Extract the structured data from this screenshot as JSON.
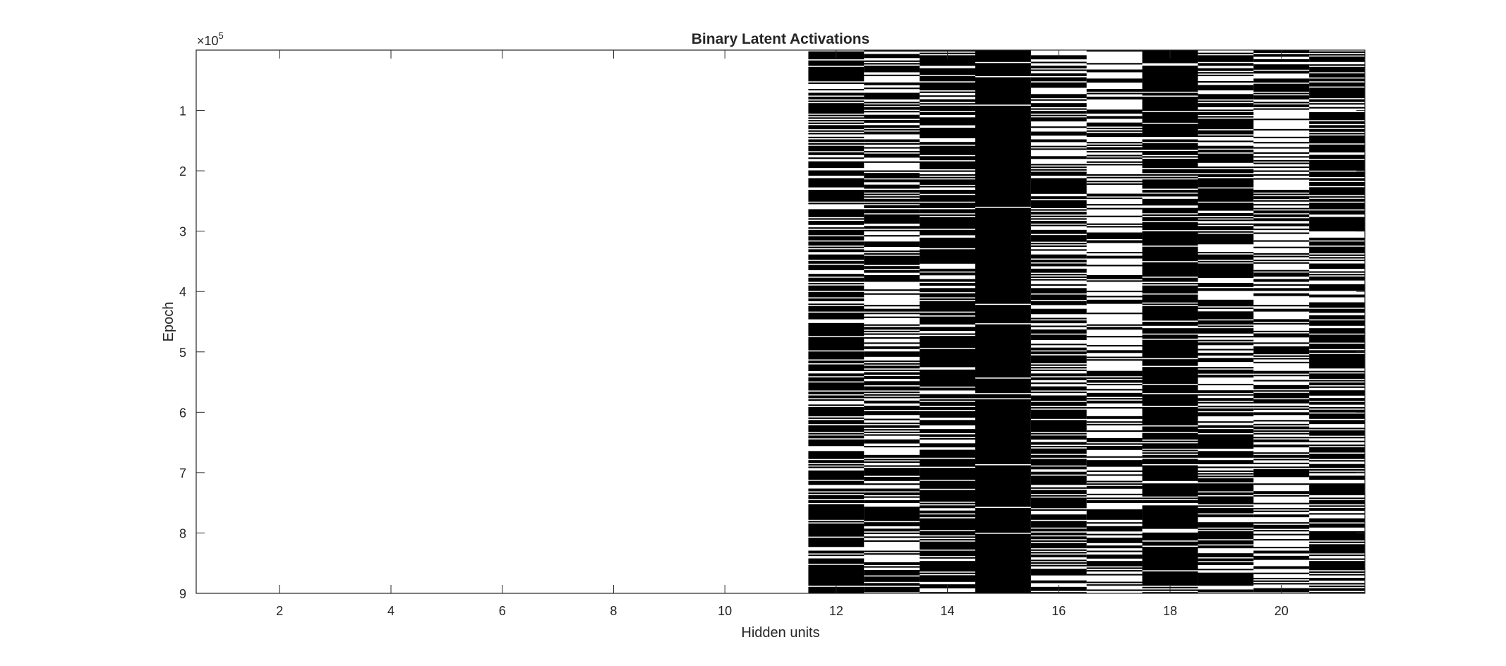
{
  "chart_data": {
    "type": "heatmap",
    "title": "Binary Latent Activations",
    "xlabel": "Hidden units",
    "ylabel": "Epoch",
    "y_exponent_label": "×10",
    "y_exponent_power": "5",
    "xlim": [
      0.5,
      21.5
    ],
    "ylim": [
      0,
      900000
    ],
    "y_direction": "reverse",
    "x_ticks": [
      2,
      4,
      6,
      8,
      10,
      12,
      14,
      16,
      18,
      20
    ],
    "y_ticks": [
      1,
      2,
      3,
      4,
      5,
      6,
      7,
      8,
      9
    ],
    "units": [
      1,
      2,
      3,
      4,
      5,
      6,
      7,
      8,
      9,
      10,
      11,
      12,
      13,
      14,
      15,
      16,
      17,
      18,
      19,
      20,
      21
    ],
    "unit_activation_rate": [
      0,
      0,
      0,
      0,
      0,
      0,
      0,
      0,
      0,
      0,
      0,
      0.7,
      0.55,
      0.75,
      0.97,
      0.6,
      0.35,
      0.85,
      0.55,
      0.4,
      0.7
    ],
    "colormap": [
      "#ffffff",
      "#000000"
    ],
    "grid": false,
    "legend": "none"
  }
}
